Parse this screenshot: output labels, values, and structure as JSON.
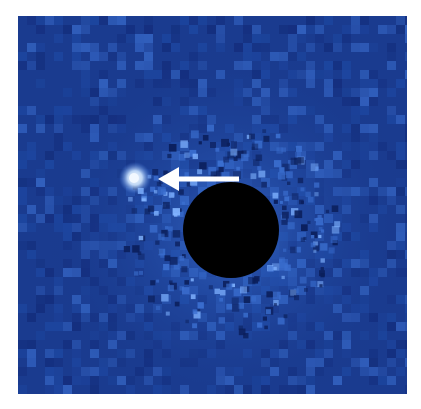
{
  "image": {
    "subject": "coronagraphic-exoplanet-image",
    "colors": {
      "background_noise_dark": "#122a78",
      "background_noise_mid": "#1e4aa6",
      "background_noise_light": "#3b6fd0",
      "speckle_highlight": "#7fb2ff",
      "occulter": "#000000",
      "planet": "#e8f4ff",
      "arrow": "#ffffff"
    },
    "icons": {
      "occulter": "coronagraph-mask-disc",
      "planet": "exoplanet-point-source",
      "arrow": "left-arrow-indicator"
    }
  }
}
